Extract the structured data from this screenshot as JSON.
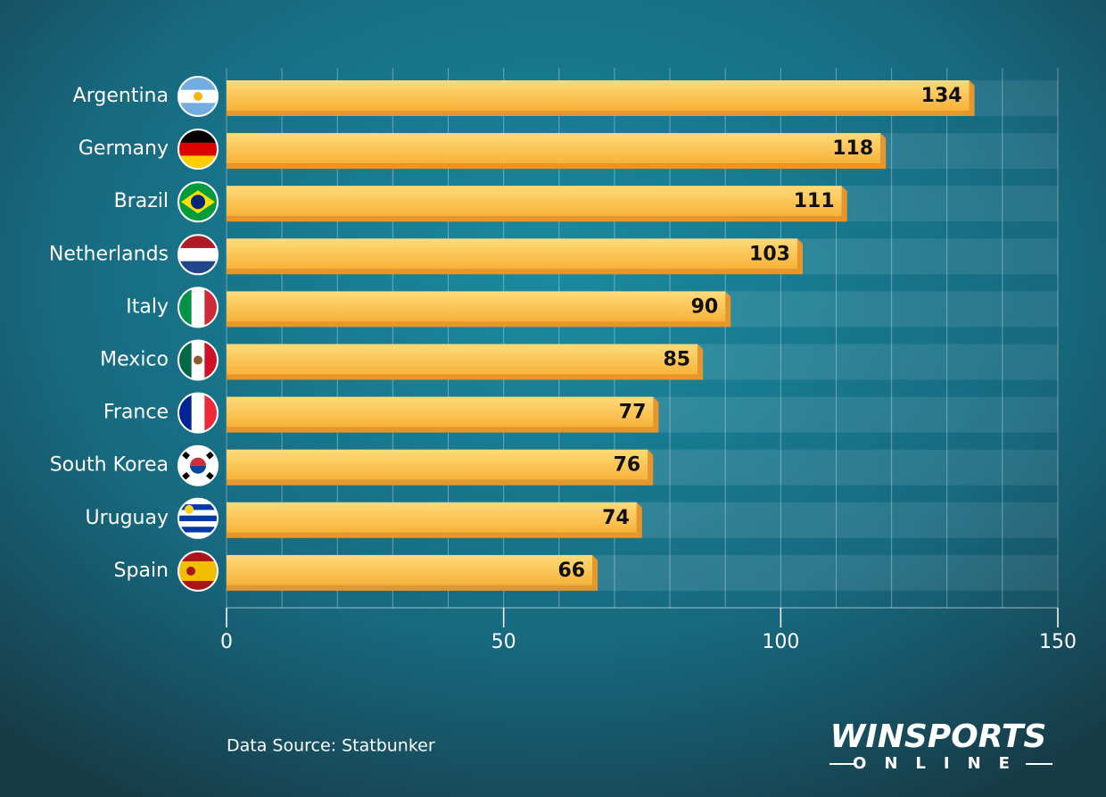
{
  "chart_data": {
    "type": "bar",
    "orientation": "horizontal",
    "categories": [
      "Argentina",
      "Germany",
      "Brazil",
      "Netherlands",
      "Italy",
      "Mexico",
      "France",
      "South Korea",
      "Uruguay",
      "Spain"
    ],
    "values": [
      134,
      118,
      111,
      103,
      90,
      85,
      77,
      76,
      74,
      66
    ],
    "color": "#fbbf45",
    "xlim": [
      0,
      150
    ],
    "xticks": [
      0,
      50,
      100,
      150
    ],
    "minor_xticks": [
      0,
      10,
      20,
      30,
      40,
      50,
      60,
      70,
      80,
      90,
      100,
      110,
      120,
      130,
      140,
      150
    ],
    "grid": true,
    "source": "Data Source: Statbunker",
    "logo": {
      "brand": "WINSPORTS",
      "sub": "ONLINE"
    }
  }
}
